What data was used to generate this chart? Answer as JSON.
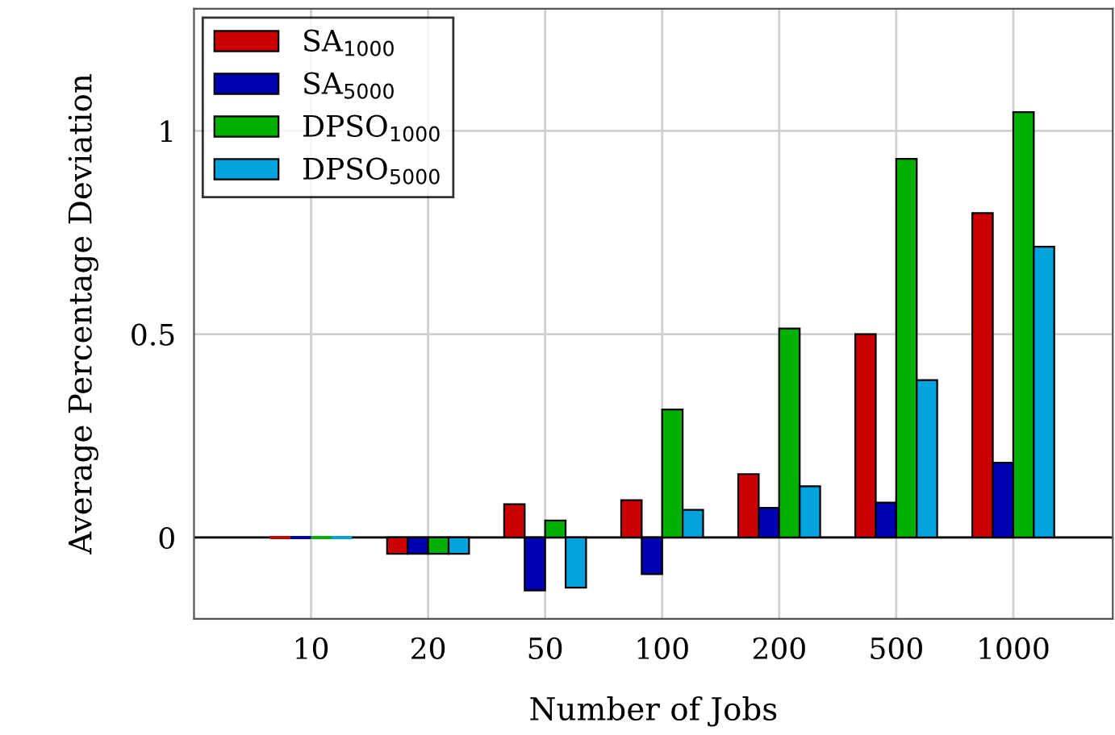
{
  "chart_data": {
    "type": "bar",
    "xlabel": "Number of Jobs",
    "ylabel": "Average Percentage Deviation",
    "categories": [
      "10",
      "20",
      "50",
      "100",
      "200",
      "500",
      "1000"
    ],
    "series": [
      {
        "name": "SA$_{1000}$",
        "color": "#cc0000",
        "values": [
          0,
          -0.04,
          0.082,
          0.092,
          0.156,
          0.5,
          0.798
        ]
      },
      {
        "name": "SA$_{5000}$",
        "color": "#0000b3",
        "values": [
          0,
          -0.04,
          -0.13,
          -0.09,
          0.073,
          0.086,
          0.184
        ]
      },
      {
        "name": "DPSO$_{1000}$",
        "color": "#00b000",
        "values": [
          0,
          -0.04,
          0.042,
          0.315,
          0.514,
          0.931,
          1.046
        ]
      },
      {
        "name": "DPSO$_{5000}$",
        "color": "#00a3dd",
        "values": [
          0,
          -0.04,
          -0.123,
          0.068,
          0.126,
          0.387,
          0.715
        ]
      }
    ],
    "ylim": [
      -0.2,
      1.3
    ],
    "yticks": [
      0,
      0.5,
      1
    ],
    "grid": true,
    "legend": "top left"
  }
}
